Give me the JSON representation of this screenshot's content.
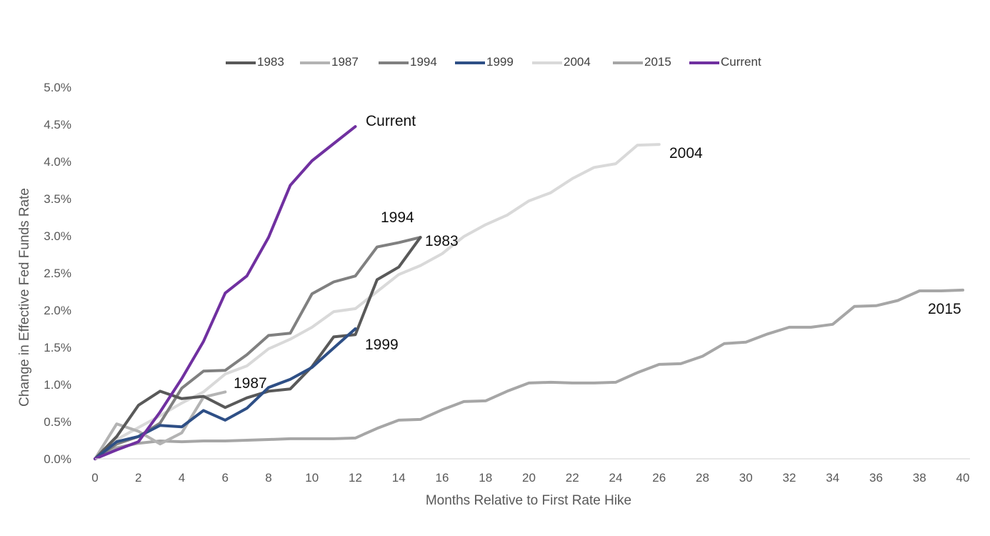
{
  "chart_data": {
    "type": "line",
    "title": "",
    "xlabel": "Months Relative to First Rate Hike",
    "ylabel": "Change in Effective Fed Funds Rate",
    "xlim": [
      0,
      40
    ],
    "ylim": [
      0,
      5
    ],
    "x_ticks": [
      "0",
      "2",
      "4",
      "6",
      "8",
      "10",
      "12",
      "14",
      "16",
      "18",
      "20",
      "22",
      "24",
      "26",
      "28",
      "30",
      "32",
      "34",
      "36",
      "38",
      "40"
    ],
    "y_ticks": [
      "0.0%",
      "0.5%",
      "1.0%",
      "1.5%",
      "2.0%",
      "2.5%",
      "3.0%",
      "3.5%",
      "4.0%",
      "4.5%",
      "5.0%"
    ],
    "grid": false,
    "legend_position": "top",
    "series": [
      {
        "name": "1983",
        "color": "#595959",
        "x": [
          0,
          1,
          2,
          3,
          4,
          5,
          6,
          7,
          8,
          9,
          10,
          11,
          12,
          13,
          14,
          15
        ],
        "values": [
          0,
          0.3,
          0.72,
          0.91,
          0.81,
          0.84,
          0.69,
          0.82,
          0.91,
          0.94,
          1.24,
          1.64,
          1.67,
          2.41,
          2.58,
          2.98
        ]
      },
      {
        "name": "1987",
        "color": "#b3b3b3",
        "x": [
          0,
          1,
          2,
          3,
          4,
          5,
          6
        ],
        "values": [
          0,
          0.47,
          0.37,
          0.2,
          0.35,
          0.83,
          0.9
        ]
      },
      {
        "name": "1994",
        "color": "#808080",
        "x": [
          0,
          1,
          2,
          3,
          4,
          5,
          6,
          7,
          8,
          9,
          10,
          11,
          12,
          13,
          14,
          15
        ],
        "values": [
          0,
          0.2,
          0.3,
          0.48,
          0.95,
          1.18,
          1.19,
          1.4,
          1.66,
          1.69,
          2.22,
          2.38,
          2.46,
          2.85,
          2.91,
          2.98
        ]
      },
      {
        "name": "1999",
        "color": "#2e4f86",
        "x": [
          0,
          1,
          2,
          3,
          4,
          5,
          6,
          7,
          8,
          9,
          10,
          11,
          12
        ],
        "values": [
          0,
          0.23,
          0.3,
          0.45,
          0.43,
          0.65,
          0.52,
          0.68,
          0.96,
          1.07,
          1.23,
          1.49,
          1.75
        ]
      },
      {
        "name": "2004",
        "color": "#d9d9d9",
        "x": [
          0,
          1,
          2,
          3,
          4,
          5,
          6,
          7,
          8,
          9,
          10,
          11,
          12,
          13,
          14,
          15,
          16,
          17,
          18,
          19,
          20,
          21,
          22,
          23,
          24,
          25,
          26
        ],
        "values": [
          0,
          0.26,
          0.42,
          0.58,
          0.75,
          0.9,
          1.14,
          1.25,
          1.48,
          1.61,
          1.77,
          1.98,
          2.02,
          2.25,
          2.48,
          2.6,
          2.76,
          2.99,
          3.15,
          3.28,
          3.47,
          3.58,
          3.77,
          3.92,
          3.97,
          4.22,
          4.23
        ]
      },
      {
        "name": "2015",
        "color": "#a6a6a6",
        "x": [
          0,
          1,
          2,
          3,
          4,
          5,
          6,
          7,
          8,
          9,
          10,
          11,
          12,
          13,
          14,
          15,
          16,
          17,
          18,
          19,
          20,
          21,
          22,
          23,
          24,
          25,
          26,
          27,
          28,
          29,
          30,
          31,
          32,
          33,
          34,
          35,
          36,
          37,
          38,
          39,
          40
        ],
        "values": [
          0,
          0.15,
          0.21,
          0.24,
          0.23,
          0.24,
          0.24,
          0.25,
          0.26,
          0.27,
          0.27,
          0.27,
          0.28,
          0.41,
          0.52,
          0.53,
          0.66,
          0.77,
          0.78,
          0.91,
          1.02,
          1.03,
          1.02,
          1.02,
          1.03,
          1.16,
          1.27,
          1.28,
          1.38,
          1.55,
          1.57,
          1.68,
          1.77,
          1.77,
          1.81,
          2.05,
          2.06,
          2.13,
          2.26,
          2.26,
          2.27
        ]
      },
      {
        "name": "Current",
        "color": "#7030a0",
        "x": [
          0,
          1,
          2,
          3,
          4,
          5,
          6,
          7,
          8,
          9,
          10,
          11,
          12
        ],
        "values": [
          0,
          0.12,
          0.23,
          0.63,
          1.08,
          1.58,
          2.23,
          2.46,
          2.98,
          3.68,
          4.01,
          4.24,
          4.47
        ]
      }
    ],
    "annotations": [
      "Current",
      "2004",
      "1994",
      "1983",
      "2015",
      "1999",
      "1987"
    ]
  }
}
